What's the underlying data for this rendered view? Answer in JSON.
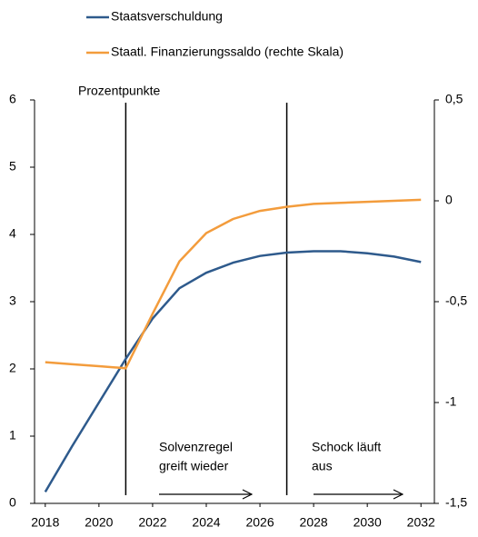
{
  "chart_data": {
    "type": "line",
    "y_label": "Prozentpunkte",
    "x": [
      2018,
      2019,
      2020,
      2021,
      2022,
      2023,
      2024,
      2025,
      2026,
      2027,
      2028,
      2029,
      2030,
      2031,
      2032
    ],
    "series": [
      {
        "name": "Staatsverschuldung",
        "color": "#2e5a8c",
        "values": [
          0.17,
          0.85,
          1.5,
          2.15,
          2.75,
          3.2,
          3.43,
          3.58,
          3.68,
          3.73,
          3.75,
          3.75,
          3.72,
          3.67,
          3.59
        ]
      },
      {
        "name": "Staatl. Finanzierungssaldo (rechte Skala)",
        "color": "#f39c3c",
        "axis": "y2",
        "values": [
          -0.8,
          -0.81,
          -0.82,
          -0.83,
          -0.56,
          -0.3,
          -0.16,
          -0.09,
          -0.05,
          -0.03,
          -0.015,
          -0.01,
          -0.005,
          0,
          0.005
        ]
      }
    ],
    "xlim": [
      2017.6,
      2032.5
    ],
    "xticks": [
      2018,
      2020,
      2022,
      2024,
      2026,
      2028,
      2030,
      2032
    ],
    "ylim": [
      0,
      6
    ],
    "yticks": [
      0,
      1,
      2,
      3,
      4,
      5,
      6
    ],
    "y2lim": [
      -1.5,
      0.5
    ],
    "y2ticks": [
      {
        "value": 0.5,
        "label": "0,5"
      },
      0,
      {
        "value": -0.5,
        "label": "-0,5"
      },
      -1,
      {
        "value": -1.5,
        "label": "-1,5"
      }
    ],
    "vlines": [
      2021,
      2027
    ],
    "annotations": [
      [
        "Solvenzregel",
        "greift wieder"
      ],
      [
        "Schock läuft",
        "aus"
      ]
    ],
    "legend": "top"
  }
}
